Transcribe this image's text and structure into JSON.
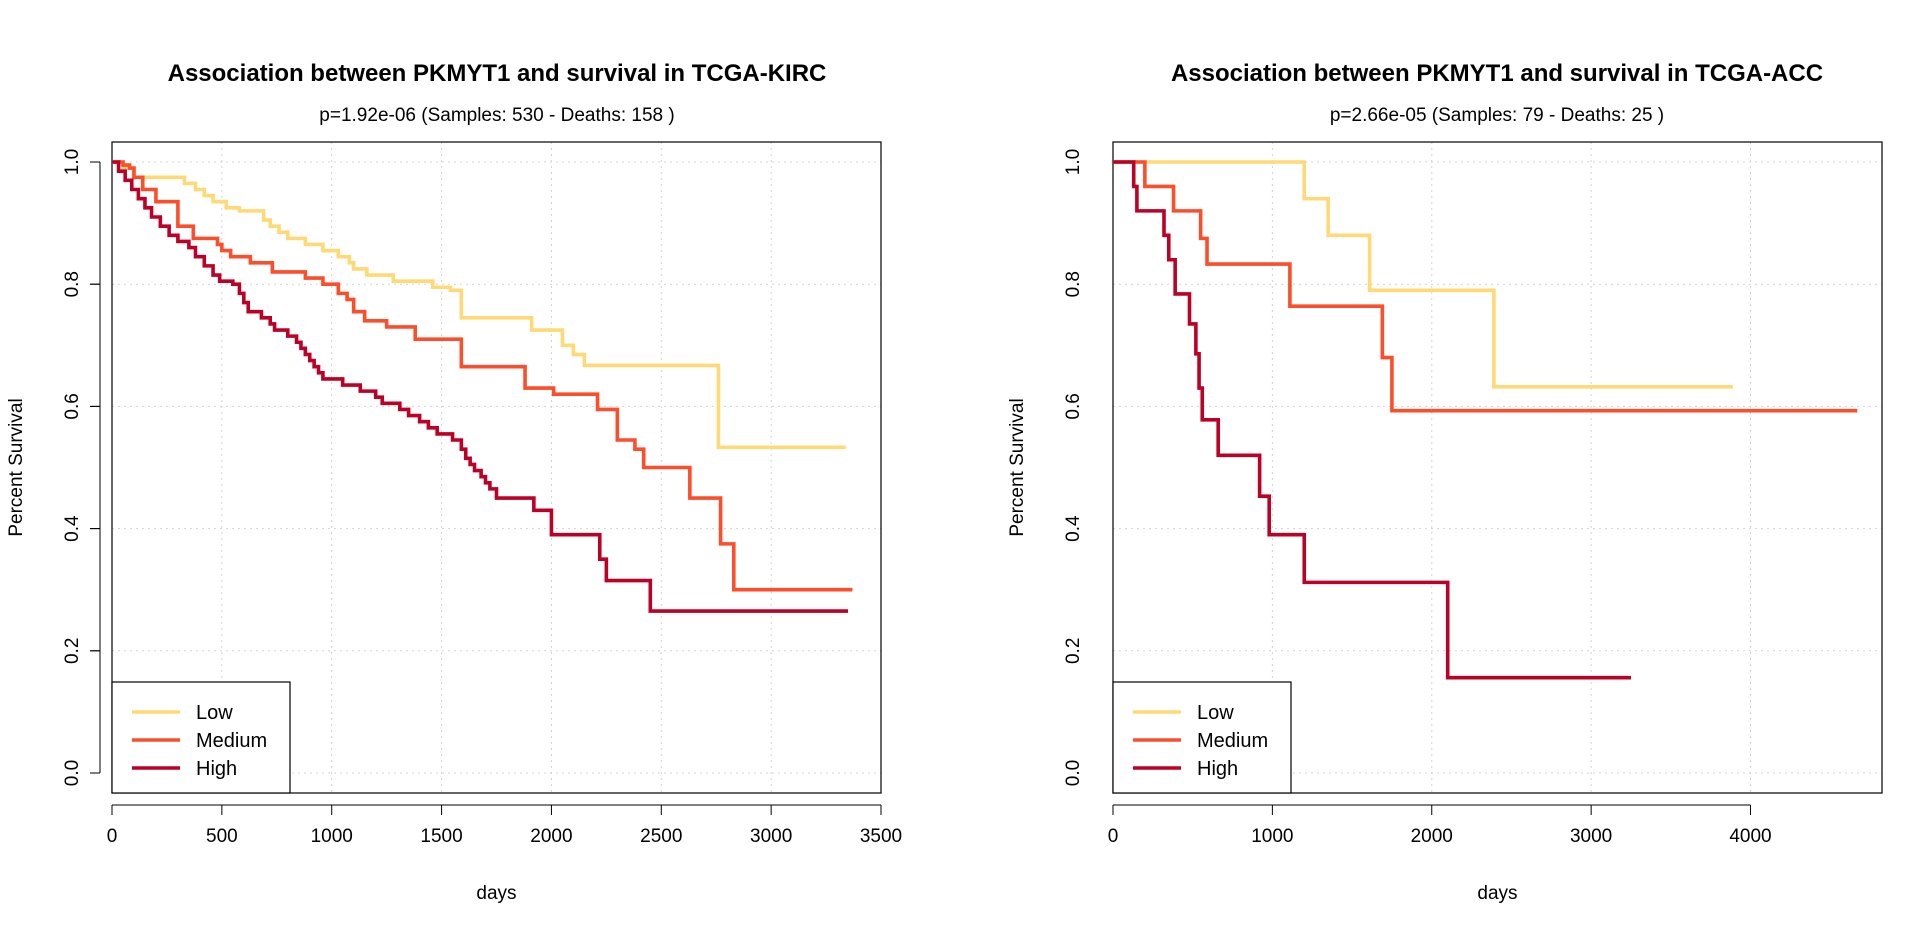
{
  "colors": {
    "Low": "#FED976",
    "Medium": "#FC4E2A",
    "High": "#BD0026"
  },
  "chart_data": [
    {
      "type": "line",
      "title": "Association between PKMYT1 and survival in TCGA-KIRC",
      "subtitle": "p=1.92e-06 (Samples: 530 - Deaths: 158 )",
      "xlabel": "days",
      "ylabel": "Percent Survival",
      "xlim": [
        0,
        3500
      ],
      "ylim": [
        0,
        1
      ],
      "xticks": [
        "0",
        "500",
        "1000",
        "1500",
        "2000",
        "2500",
        "3000",
        "3500"
      ],
      "xtick_values": [
        0,
        500,
        1000,
        1500,
        2000,
        2500,
        3000,
        3500
      ],
      "yticks": [
        "0.0",
        "0.2",
        "0.4",
        "0.6",
        "0.8",
        "1.0"
      ],
      "ytick_values": [
        0,
        0.2,
        0.4,
        0.6,
        0.8,
        1.0
      ],
      "grid": true,
      "legend_position": "bottom-left",
      "legend": [
        "Low",
        "Medium",
        "High"
      ],
      "series": [
        {
          "name": "Low",
          "steps": [
            [
              0,
              1.0
            ],
            [
              50,
              0.99
            ],
            [
              100,
              0.975
            ],
            [
              330,
              0.965
            ],
            [
              380,
              0.955
            ],
            [
              420,
              0.945
            ],
            [
              460,
              0.935
            ],
            [
              520,
              0.925
            ],
            [
              580,
              0.92
            ],
            [
              690,
              0.905
            ],
            [
              720,
              0.895
            ],
            [
              760,
              0.885
            ],
            [
              800,
              0.875
            ],
            [
              880,
              0.865
            ],
            [
              960,
              0.855
            ],
            [
              1030,
              0.845
            ],
            [
              1080,
              0.835
            ],
            [
              1100,
              0.825
            ],
            [
              1160,
              0.815
            ],
            [
              1280,
              0.805
            ],
            [
              1460,
              0.795
            ],
            [
              1540,
              0.79
            ],
            [
              1590,
              0.745
            ],
            [
              1910,
              0.725
            ],
            [
              2050,
              0.7
            ],
            [
              2100,
              0.685
            ],
            [
              2150,
              0.667
            ],
            [
              2760,
              0.533
            ],
            [
              3340,
              0.533
            ]
          ]
        },
        {
          "name": "Medium",
          "steps": [
            [
              0,
              1.0
            ],
            [
              50,
              0.995
            ],
            [
              80,
              0.99
            ],
            [
              100,
              0.975
            ],
            [
              140,
              0.955
            ],
            [
              200,
              0.935
            ],
            [
              300,
              0.895
            ],
            [
              370,
              0.875
            ],
            [
              480,
              0.865
            ],
            [
              500,
              0.855
            ],
            [
              540,
              0.845
            ],
            [
              630,
              0.835
            ],
            [
              730,
              0.82
            ],
            [
              880,
              0.81
            ],
            [
              960,
              0.8
            ],
            [
              1030,
              0.785
            ],
            [
              1070,
              0.775
            ],
            [
              1100,
              0.755
            ],
            [
              1150,
              0.74
            ],
            [
              1250,
              0.73
            ],
            [
              1380,
              0.71
            ],
            [
              1590,
              0.665
            ],
            [
              1880,
              0.63
            ],
            [
              2010,
              0.62
            ],
            [
              2210,
              0.595
            ],
            [
              2300,
              0.545
            ],
            [
              2380,
              0.53
            ],
            [
              2420,
              0.5
            ],
            [
              2630,
              0.45
            ],
            [
              2770,
              0.375
            ],
            [
              2830,
              0.3
            ],
            [
              3370,
              0.3
            ]
          ]
        },
        {
          "name": "High",
          "steps": [
            [
              0,
              1.0
            ],
            [
              30,
              0.985
            ],
            [
              60,
              0.97
            ],
            [
              90,
              0.955
            ],
            [
              120,
              0.94
            ],
            [
              150,
              0.925
            ],
            [
              180,
              0.91
            ],
            [
              220,
              0.895
            ],
            [
              260,
              0.88
            ],
            [
              300,
              0.87
            ],
            [
              350,
              0.86
            ],
            [
              380,
              0.845
            ],
            [
              420,
              0.83
            ],
            [
              460,
              0.815
            ],
            [
              490,
              0.805
            ],
            [
              550,
              0.8
            ],
            [
              580,
              0.785
            ],
            [
              600,
              0.77
            ],
            [
              620,
              0.755
            ],
            [
              680,
              0.745
            ],
            [
              720,
              0.735
            ],
            [
              740,
              0.725
            ],
            [
              800,
              0.715
            ],
            [
              840,
              0.705
            ],
            [
              860,
              0.695
            ],
            [
              880,
              0.685
            ],
            [
              900,
              0.675
            ],
            [
              920,
              0.665
            ],
            [
              940,
              0.655
            ],
            [
              960,
              0.645
            ],
            [
              1050,
              0.635
            ],
            [
              1130,
              0.625
            ],
            [
              1200,
              0.615
            ],
            [
              1230,
              0.605
            ],
            [
              1310,
              0.595
            ],
            [
              1350,
              0.585
            ],
            [
              1400,
              0.575
            ],
            [
              1440,
              0.565
            ],
            [
              1480,
              0.555
            ],
            [
              1550,
              0.545
            ],
            [
              1590,
              0.53
            ],
            [
              1610,
              0.515
            ],
            [
              1630,
              0.505
            ],
            [
              1650,
              0.495
            ],
            [
              1680,
              0.485
            ],
            [
              1700,
              0.475
            ],
            [
              1720,
              0.465
            ],
            [
              1750,
              0.45
            ],
            [
              1920,
              0.43
            ],
            [
              2000,
              0.39
            ],
            [
              2220,
              0.35
            ],
            [
              2250,
              0.315
            ],
            [
              2450,
              0.265
            ],
            [
              3350,
              0.265
            ]
          ]
        }
      ]
    },
    {
      "type": "line",
      "title": "Association between PKMYT1 and survival in TCGA-ACC",
      "subtitle": "p=2.66e-05 (Samples: 79 - Deaths: 25 )",
      "xlabel": "days",
      "ylabel": "Percent Survival",
      "xlim": [
        0,
        4825
      ],
      "ylim": [
        0,
        1
      ],
      "xticks": [
        "0",
        "1000",
        "2000",
        "3000",
        "4000"
      ],
      "xtick_values": [
        0,
        1000,
        2000,
        3000,
        4000
      ],
      "yticks": [
        "0.0",
        "0.2",
        "0.4",
        "0.6",
        "0.8",
        "1.0"
      ],
      "ytick_values": [
        0,
        0.2,
        0.4,
        0.6,
        0.8,
        1.0
      ],
      "grid": true,
      "legend_position": "bottom-left",
      "legend": [
        "Low",
        "Medium",
        "High"
      ],
      "series": [
        {
          "name": "Low",
          "steps": [
            [
              0,
              1.0
            ],
            [
              1200,
              0.94
            ],
            [
              1350,
              0.88
            ],
            [
              1610,
              0.79
            ],
            [
              2390,
              0.632
            ],
            [
              3890,
              0.632
            ]
          ]
        },
        {
          "name": "Medium",
          "steps": [
            [
              0,
              1.0
            ],
            [
              200,
              0.96
            ],
            [
              380,
              0.92
            ],
            [
              550,
              0.875
            ],
            [
              590,
              0.833
            ],
            [
              1110,
              0.764
            ],
            [
              1690,
              0.68
            ],
            [
              1750,
              0.593
            ],
            [
              4670,
              0.593
            ]
          ]
        },
        {
          "name": "High",
          "steps": [
            [
              0,
              1.0
            ],
            [
              130,
              0.96
            ],
            [
              150,
              0.92
            ],
            [
              320,
              0.88
            ],
            [
              350,
              0.84
            ],
            [
              390,
              0.784
            ],
            [
              480,
              0.735
            ],
            [
              520,
              0.686
            ],
            [
              540,
              0.63
            ],
            [
              560,
              0.578
            ],
            [
              660,
              0.52
            ],
            [
              920,
              0.453
            ],
            [
              980,
              0.39
            ],
            [
              1200,
              0.312
            ],
            [
              2100,
              0.156
            ],
            [
              3250,
              0.156
            ]
          ]
        }
      ]
    }
  ]
}
